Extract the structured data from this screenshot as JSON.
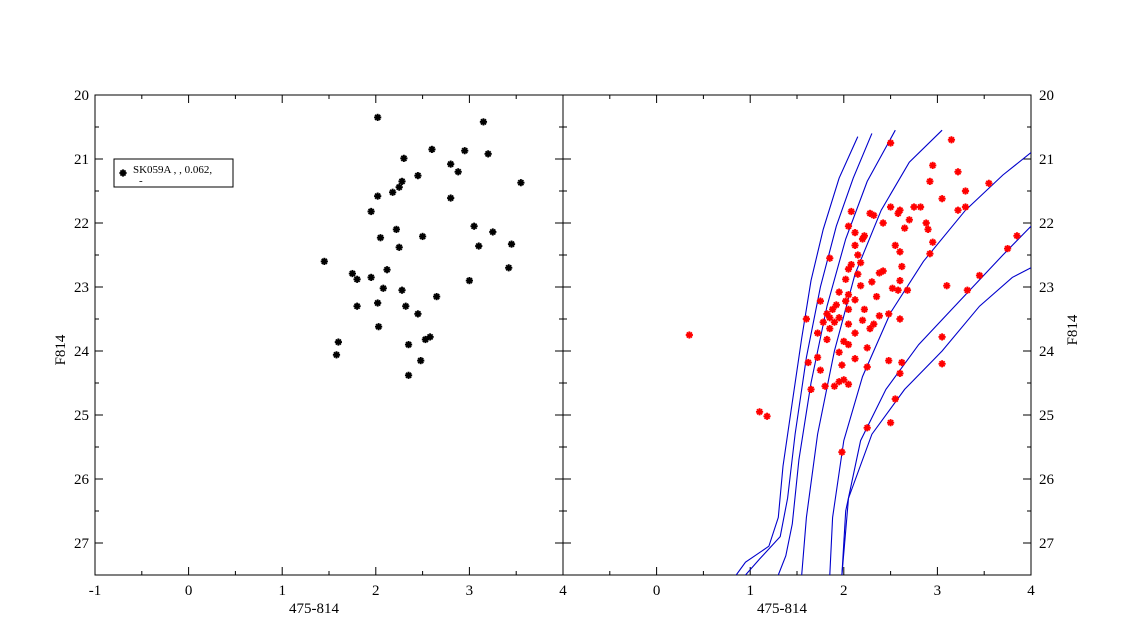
{
  "chart_data": [
    {
      "type": "scatter",
      "xlabel": "475-814",
      "ylabel": "F814",
      "xlim": [
        -1,
        4
      ],
      "ylim": [
        27.5,
        20
      ],
      "y_inverted": true,
      "xticks": [
        "-1",
        "0",
        "1",
        "2",
        "3",
        "4"
      ],
      "yticks": [
        "20",
        "21",
        "22",
        "23",
        "24",
        "25",
        "26",
        "27"
      ],
      "y_axis_side": "left",
      "grid": false,
      "legend": {
        "position": "top-left",
        "entries": [
          {
            "label": "SK059A  ,   , 0.062,",
            "sublabel": "-",
            "marker": "asterisk",
            "color": "#000000"
          }
        ]
      },
      "series": [
        {
          "name": "SK059A  ,   , 0.062,",
          "color": "#000000",
          "marker": "asterisk",
          "points": [
            [
              2.02,
              20.35
            ],
            [
              3.15,
              20.42
            ],
            [
              2.6,
              20.85
            ],
            [
              2.95,
              20.87
            ],
            [
              3.2,
              20.92
            ],
            [
              2.3,
              20.99
            ],
            [
              2.8,
              21.08
            ],
            [
              2.88,
              21.2
            ],
            [
              2.45,
              21.26
            ],
            [
              2.28,
              21.35
            ],
            [
              3.55,
              21.37
            ],
            [
              2.25,
              21.44
            ],
            [
              2.18,
              21.52
            ],
            [
              2.02,
              21.58
            ],
            [
              2.8,
              21.61
            ],
            [
              1.95,
              21.82
            ],
            [
              3.05,
              22.05
            ],
            [
              2.22,
              22.1
            ],
            [
              3.25,
              22.14
            ],
            [
              2.5,
              22.21
            ],
            [
              2.05,
              22.23
            ],
            [
              3.1,
              22.36
            ],
            [
              3.45,
              22.33
            ],
            [
              2.25,
              22.38
            ],
            [
              1.45,
              22.6
            ],
            [
              3.42,
              22.7
            ],
            [
              2.12,
              22.73
            ],
            [
              1.75,
              22.79
            ],
            [
              1.8,
              22.88
            ],
            [
              1.95,
              22.85
            ],
            [
              3.0,
              22.9
            ],
            [
              2.08,
              23.02
            ],
            [
              2.28,
              23.05
            ],
            [
              2.65,
              23.15
            ],
            [
              2.02,
              23.25
            ],
            [
              1.8,
              23.3
            ],
            [
              2.32,
              23.3
            ],
            [
              2.45,
              23.42
            ],
            [
              2.03,
              23.62
            ],
            [
              2.58,
              23.78
            ],
            [
              2.53,
              23.82
            ],
            [
              1.6,
              23.86
            ],
            [
              2.35,
              23.9
            ],
            [
              1.58,
              24.06
            ],
            [
              2.48,
              24.15
            ],
            [
              2.35,
              24.38
            ]
          ]
        }
      ]
    },
    {
      "type": "scatter",
      "xlabel": "475-814",
      "ylabel": "F814",
      "xlim": [
        -1,
        4
      ],
      "ylim": [
        27.5,
        20
      ],
      "y_inverted": true,
      "xticks": [
        "-1",
        "0",
        "1",
        "2",
        "3",
        "4"
      ],
      "yticks": [
        "20",
        "21",
        "22",
        "23",
        "24",
        "25",
        "26",
        "27"
      ],
      "y_axis_side": "right",
      "grid": false,
      "series": [
        {
          "type": "scatter",
          "color": "#ff0000",
          "marker": "asterisk",
          "points": [
            [
              3.15,
              20.7
            ],
            [
              2.5,
              20.75
            ],
            [
              2.95,
              21.1
            ],
            [
              3.22,
              21.2
            ],
            [
              2.92,
              21.35
            ],
            [
              3.55,
              21.38
            ],
            [
              3.3,
              21.5
            ],
            [
              3.05,
              21.62
            ],
            [
              2.5,
              21.75
            ],
            [
              2.75,
              21.75
            ],
            [
              2.82,
              21.75
            ],
            [
              3.3,
              21.75
            ],
            [
              3.22,
              21.8
            ],
            [
              2.6,
              21.8
            ],
            [
              2.58,
              21.85
            ],
            [
              2.08,
              21.82
            ],
            [
              2.28,
              21.85
            ],
            [
              2.32,
              21.88
            ],
            [
              2.42,
              22.0
            ],
            [
              2.7,
              21.95
            ],
            [
              2.88,
              22.0
            ],
            [
              2.05,
              22.05
            ],
            [
              2.9,
              22.1
            ],
            [
              2.65,
              22.08
            ],
            [
              2.12,
              22.15
            ],
            [
              2.22,
              22.2
            ],
            [
              3.85,
              22.2
            ],
            [
              2.2,
              22.25
            ],
            [
              2.95,
              22.3
            ],
            [
              2.12,
              22.35
            ],
            [
              2.55,
              22.35
            ],
            [
              3.75,
              22.4
            ],
            [
              2.6,
              22.45
            ],
            [
              2.15,
              22.5
            ],
            [
              2.92,
              22.48
            ],
            [
              1.85,
              22.55
            ],
            [
              2.18,
              22.62
            ],
            [
              2.08,
              22.65
            ],
            [
              2.05,
              22.72
            ],
            [
              2.62,
              22.68
            ],
            [
              2.15,
              22.8
            ],
            [
              2.38,
              22.78
            ],
            [
              2.42,
              22.75
            ],
            [
              2.6,
              22.9
            ],
            [
              2.02,
              22.88
            ],
            [
              2.3,
              22.92
            ],
            [
              2.18,
              22.98
            ],
            [
              3.45,
              22.82
            ],
            [
              3.1,
              22.98
            ],
            [
              2.52,
              23.02
            ],
            [
              2.58,
              23.05
            ],
            [
              2.68,
              23.05
            ],
            [
              3.32,
              23.05
            ],
            [
              1.95,
              23.08
            ],
            [
              2.05,
              23.12
            ],
            [
              2.12,
              23.2
            ],
            [
              2.35,
              23.15
            ],
            [
              2.02,
              23.22
            ],
            [
              1.92,
              23.28
            ],
            [
              1.75,
              23.22
            ],
            [
              1.88,
              23.35
            ],
            [
              2.05,
              23.35
            ],
            [
              2.22,
              23.35
            ],
            [
              2.48,
              23.42
            ],
            [
              1.82,
              23.42
            ],
            [
              1.85,
              23.48
            ],
            [
              1.95,
              23.48
            ],
            [
              2.38,
              23.45
            ],
            [
              2.2,
              23.52
            ],
            [
              2.6,
              23.5
            ],
            [
              1.78,
              23.55
            ],
            [
              1.9,
              23.55
            ],
            [
              2.05,
              23.58
            ],
            [
              2.32,
              23.58
            ],
            [
              2.28,
              23.65
            ],
            [
              1.85,
              23.65
            ],
            [
              1.72,
              23.72
            ],
            [
              2.12,
              23.72
            ],
            [
              1.82,
              23.82
            ],
            [
              2.0,
              23.85
            ],
            [
              3.05,
              23.78
            ],
            [
              2.05,
              23.9
            ],
            [
              1.6,
              23.5
            ],
            [
              2.25,
              23.95
            ],
            [
              1.95,
              24.02
            ],
            [
              1.72,
              24.1
            ],
            [
              2.12,
              24.12
            ],
            [
              1.62,
              24.18
            ],
            [
              2.48,
              24.15
            ],
            [
              1.98,
              24.22
            ],
            [
              2.62,
              24.18
            ],
            [
              1.75,
              24.3
            ],
            [
              2.25,
              24.25
            ],
            [
              3.05,
              24.2
            ],
            [
              2.6,
              24.35
            ],
            [
              1.95,
              24.48
            ],
            [
              2.0,
              24.45
            ],
            [
              2.05,
              24.52
            ],
            [
              1.8,
              24.55
            ],
            [
              1.9,
              24.55
            ],
            [
              1.65,
              24.6
            ],
            [
              2.55,
              24.75
            ],
            [
              0.35,
              23.75
            ],
            [
              1.1,
              24.95
            ],
            [
              1.18,
              25.02
            ],
            [
              2.5,
              25.12
            ],
            [
              2.25,
              25.2
            ],
            [
              1.98,
              25.58
            ]
          ]
        }
      ],
      "lines": [
        {
          "type": "line",
          "color": "#0000cc",
          "points": [
            [
              0.85,
              27.5
            ],
            [
              0.95,
              27.3
            ],
            [
              1.2,
              27.05
            ],
            [
              1.3,
              26.6
            ],
            [
              1.35,
              25.8
            ],
            [
              1.45,
              24.8
            ],
            [
              1.55,
              23.8
            ],
            [
              1.65,
              22.9
            ],
            [
              1.78,
              22.1
            ],
            [
              1.95,
              21.3
            ],
            [
              2.15,
              20.65
            ]
          ]
        },
        {
          "type": "line",
          "color": "#0000cc",
          "points": [
            [
              0.95,
              27.5
            ],
            [
              1.1,
              27.25
            ],
            [
              1.32,
              26.9
            ],
            [
              1.4,
              26.3
            ],
            [
              1.48,
              25.3
            ],
            [
              1.6,
              24.1
            ],
            [
              1.75,
              23.0
            ],
            [
              1.92,
              22.05
            ],
            [
              2.1,
              21.3
            ],
            [
              2.3,
              20.6
            ]
          ]
        },
        {
          "type": "line",
          "color": "#0000cc",
          "points": [
            [
              1.3,
              27.5
            ],
            [
              1.38,
              27.2
            ],
            [
              1.45,
              26.7
            ],
            [
              1.52,
              25.7
            ],
            [
              1.65,
              24.5
            ],
            [
              1.82,
              23.3
            ],
            [
              2.02,
              22.25
            ],
            [
              2.25,
              21.35
            ],
            [
              2.55,
              20.55
            ]
          ]
        },
        {
          "type": "line",
          "color": "#0000cc",
          "points": [
            [
              1.55,
              27.5
            ],
            [
              1.6,
              26.6
            ],
            [
              1.72,
              25.3
            ],
            [
              1.9,
              24.0
            ],
            [
              2.12,
              22.8
            ],
            [
              2.4,
              21.8
            ],
            [
              2.7,
              21.05
            ],
            [
              3.05,
              20.55
            ]
          ]
        },
        {
          "type": "line",
          "color": "#0000cc",
          "points": [
            [
              1.85,
              27.5
            ],
            [
              1.88,
              26.6
            ],
            [
              2.0,
              25.4
            ],
            [
              2.2,
              24.4
            ],
            [
              2.5,
              23.4
            ],
            [
              2.85,
              22.6
            ],
            [
              3.3,
              21.8
            ],
            [
              3.7,
              21.25
            ],
            [
              4.0,
              20.9
            ]
          ]
        },
        {
          "type": "line",
          "color": "#0000cc",
          "points": [
            [
              1.98,
              27.5
            ],
            [
              2.02,
              26.5
            ],
            [
              2.18,
              25.4
            ],
            [
              2.45,
              24.6
            ],
            [
              2.8,
              23.9
            ],
            [
              3.25,
              23.2
            ],
            [
              3.7,
              22.5
            ],
            [
              4.0,
              22.05
            ]
          ]
        },
        {
          "type": "line",
          "color": "#0000cc",
          "points": [
            [
              1.98,
              27.5
            ],
            [
              2.05,
              26.3
            ],
            [
              2.3,
              25.3
            ],
            [
              2.65,
              24.6
            ],
            [
              3.05,
              24.0
            ],
            [
              3.45,
              23.3
            ],
            [
              3.8,
              22.85
            ],
            [
              4.0,
              22.7
            ]
          ]
        }
      ]
    }
  ]
}
